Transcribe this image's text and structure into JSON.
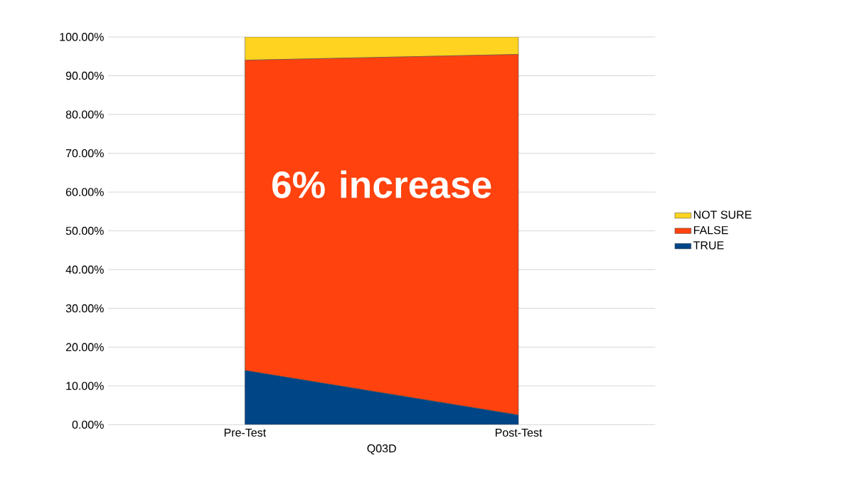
{
  "chart_data": {
    "type": "area",
    "stacked": true,
    "categories": [
      "Pre-Test",
      "Post-Test"
    ],
    "xlabel": "Q03D",
    "series": [
      {
        "name": "TRUE",
        "color": "#004586",
        "values": [
          14,
          2.5
        ]
      },
      {
        "name": "FALSE",
        "color": "#ff420e",
        "values": [
          80,
          93
        ]
      },
      {
        "name": "NOT SURE",
        "color": "#ffd320",
        "values": [
          6,
          4.5
        ]
      }
    ],
    "ylim": [
      0,
      100
    ],
    "yticks": [
      {
        "value": 0,
        "label": "0.00%"
      },
      {
        "value": 10,
        "label": "10.00%"
      },
      {
        "value": 20,
        "label": "20.00%"
      },
      {
        "value": 30,
        "label": "30.00%"
      },
      {
        "value": 40,
        "label": "40.00%"
      },
      {
        "value": 50,
        "label": "50.00%"
      },
      {
        "value": 60,
        "label": "60.00%"
      },
      {
        "value": 70,
        "label": "70.00%"
      },
      {
        "value": 80,
        "label": "80.00%"
      },
      {
        "value": 90,
        "label": "90.00%"
      },
      {
        "value": 100,
        "label": "100.00%"
      }
    ],
    "grid": "y",
    "legend": "right",
    "annotations": [
      "6% increase"
    ]
  }
}
